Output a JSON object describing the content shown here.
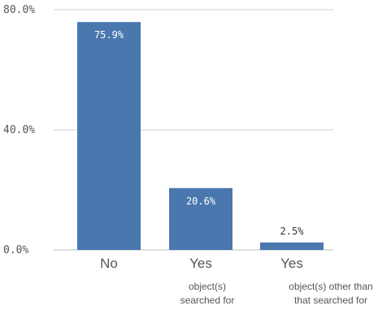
{
  "chart_data": {
    "type": "bar",
    "categories": [
      "No",
      "Yes",
      "Yes"
    ],
    "subcategories": [
      [],
      [
        "object(s)",
        "searched for"
      ],
      [
        "object(s) other than",
        "that searched for"
      ]
    ],
    "values": [
      75.9,
      20.6,
      2.5
    ],
    "data_labels": [
      "75.9%",
      "20.6%",
      "2.5%"
    ],
    "yticks": [
      {
        "value": 0,
        "label": "0.0%"
      },
      {
        "value": 40,
        "label": "40.0%"
      },
      {
        "value": 80,
        "label": "80.0%"
      }
    ],
    "ylim": [
      0,
      80
    ],
    "title": "",
    "xlabel": "",
    "ylabel": "",
    "grid": true,
    "bar_color": "#4a77ae"
  }
}
